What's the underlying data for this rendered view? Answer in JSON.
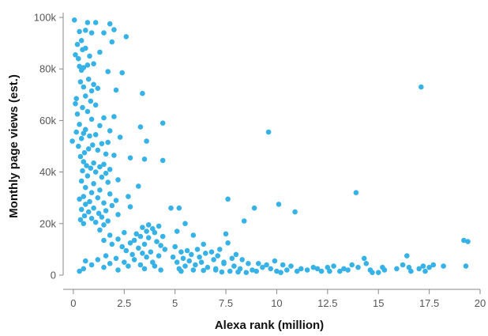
{
  "chart_data": {
    "type": "scatter",
    "title": "",
    "xlabel": "Alexa rank (million)",
    "ylabel": "Monthly page views (est.)",
    "xlim": [
      -0.5,
      20
    ],
    "ylim": [
      0,
      100000
    ],
    "x_ticks": [
      0,
      2.5,
      5,
      7.5,
      10,
      12.5,
      15,
      17.5,
      20
    ],
    "x_tick_labels": [
      "0",
      "2.5",
      "5",
      "7.5",
      "10",
      "12.5",
      "15",
      "17.5",
      "20"
    ],
    "y_ticks": [
      0,
      20000,
      40000,
      60000,
      80000,
      100000
    ],
    "y_tick_labels": [
      "0",
      "20k",
      "40k",
      "60k",
      "80k",
      "100k"
    ],
    "grid": false,
    "point_color": "#36b2e6",
    "points": [
      [
        0.05,
        99000
      ],
      [
        0.7,
        98000
      ],
      [
        1.1,
        98000
      ],
      [
        1.8,
        97500
      ],
      [
        0.6,
        95000
      ],
      [
        0.3,
        94500
      ],
      [
        2.0,
        95200
      ],
      [
        1.5,
        94000
      ],
      [
        0.9,
        94000
      ],
      [
        2.6,
        92500
      ],
      [
        0.4,
        91000
      ],
      [
        1.9,
        90500
      ],
      [
        0.2,
        89500
      ],
      [
        0.6,
        88000
      ],
      [
        0.45,
        87500
      ],
      [
        1.3,
        86500
      ],
      [
        0.1,
        85500
      ],
      [
        0.8,
        85000
      ],
      [
        0.25,
        84000
      ],
      [
        1.0,
        82000
      ],
      [
        0.7,
        81500
      ],
      [
        0.3,
        81000
      ],
      [
        0.5,
        80500
      ],
      [
        0.4,
        79500
      ],
      [
        1.7,
        79000
      ],
      [
        2.4,
        78500
      ],
      [
        0.75,
        76000
      ],
      [
        0.35,
        75000
      ],
      [
        1.0,
        74000
      ],
      [
        0.5,
        73000
      ],
      [
        1.2,
        72500
      ],
      [
        0.9,
        71500
      ],
      [
        2.1,
        71800
      ],
      [
        3.4,
        70500
      ],
      [
        0.6,
        69500
      ],
      [
        0.15,
        68500
      ],
      [
        0.85,
        67500
      ],
      [
        0.1,
        66500
      ],
      [
        1.1,
        66000
      ],
      [
        0.45,
        65000
      ],
      [
        0.7,
        63500
      ],
      [
        0.2,
        62500
      ],
      [
        2.0,
        61500
      ],
      [
        1.5,
        61000
      ],
      [
        0.9,
        60500
      ],
      [
        4.4,
        59000
      ],
      [
        0.3,
        58500
      ],
      [
        1.3,
        58000
      ],
      [
        3.3,
        57500
      ],
      [
        0.6,
        56500
      ],
      [
        1.8,
        56000
      ],
      [
        0.15,
        55500
      ],
      [
        0.5,
        55000
      ],
      [
        1.1,
        54500
      ],
      [
        0.8,
        54000
      ],
      [
        2.3,
        53500
      ],
      [
        0.4,
        53000
      ],
      [
        3.6,
        52000
      ],
      [
        1.7,
        51500
      ],
      [
        -0.05,
        52000
      ],
      [
        1.4,
        51000
      ],
      [
        0.95,
        50500
      ],
      [
        0.25,
        50000
      ],
      [
        0.75,
        49000
      ],
      [
        1.2,
        48500
      ],
      [
        0.55,
        47500
      ],
      [
        1.6,
        47000
      ],
      [
        2.0,
        46500
      ],
      [
        0.35,
        46000
      ],
      [
        2.8,
        45500
      ],
      [
        3.5,
        45000
      ],
      [
        4.4,
        44500
      ],
      [
        0.5,
        44000
      ],
      [
        1.0,
        43500
      ],
      [
        1.5,
        43000
      ],
      [
        0.65,
        42500
      ],
      [
        1.3,
        42000
      ],
      [
        0.85,
        41500
      ],
      [
        1.8,
        41000
      ],
      [
        0.45,
        40500
      ],
      [
        1.1,
        40000
      ],
      [
        1.6,
        39500
      ],
      [
        0.7,
        38500
      ],
      [
        1.4,
        38000
      ],
      [
        2.2,
        37000
      ],
      [
        0.4,
        36500
      ],
      [
        1.7,
        36000
      ],
      [
        1.0,
        35500
      ],
      [
        3.2,
        34500
      ],
      [
        0.6,
        34000
      ],
      [
        1.3,
        33000
      ],
      [
        0.9,
        32000
      ],
      [
        1.8,
        31500
      ],
      [
        2.7,
        30500
      ],
      [
        0.5,
        30500
      ],
      [
        1.2,
        30000
      ],
      [
        0.3,
        29500
      ],
      [
        2.1,
        29000
      ],
      [
        0.8,
        28500
      ],
      [
        1.5,
        28000
      ],
      [
        0.6,
        27500
      ],
      [
        1.9,
        27000
      ],
      [
        2.8,
        26500
      ],
      [
        1.0,
        26000
      ],
      [
        0.4,
        25500
      ],
      [
        1.6,
        25000
      ],
      [
        0.75,
        24500
      ],
      [
        1.25,
        24000
      ],
      [
        2.2,
        23500
      ],
      [
        0.55,
        23000
      ],
      [
        1.4,
        22500
      ],
      [
        0.9,
        22000
      ],
      [
        0.35,
        21500
      ],
      [
        1.7,
        21000
      ],
      [
        1.1,
        20500
      ],
      [
        0.5,
        20000
      ],
      [
        1.5,
        19500
      ],
      [
        3.7,
        19500
      ],
      [
        4.2,
        19000
      ],
      [
        3.4,
        18500
      ],
      [
        3.9,
        18000
      ],
      [
        1.3,
        17500
      ],
      [
        3.6,
        17000
      ],
      [
        4.0,
        16500
      ],
      [
        2.5,
        16500
      ],
      [
        3.1,
        16000
      ],
      [
        1.8,
        15500
      ],
      [
        3.3,
        15000
      ],
      [
        4.4,
        15000
      ],
      [
        3.7,
        14500
      ],
      [
        2.2,
        14000
      ],
      [
        3.0,
        13500
      ],
      [
        1.5,
        13500
      ],
      [
        4.1,
        13000
      ],
      [
        2.8,
        12500
      ],
      [
        3.5,
        12000
      ],
      [
        1.9,
        12000
      ],
      [
        4.3,
        11500
      ],
      [
        2.4,
        11000
      ],
      [
        3.2,
        10500
      ],
      [
        4.5,
        10000
      ],
      [
        2.6,
        9500
      ],
      [
        3.8,
        9000
      ],
      [
        3.4,
        8500
      ],
      [
        2.9,
        8000
      ],
      [
        4.2,
        7500
      ],
      [
        1.6,
        7500
      ],
      [
        3.6,
        7000
      ],
      [
        2.1,
        6500
      ],
      [
        3.0,
        6000
      ],
      [
        1.2,
        6000
      ],
      [
        0.6,
        5500
      ],
      [
        2.5,
        5000
      ],
      [
        3.9,
        5000
      ],
      [
        1.8,
        4500
      ],
      [
        3.3,
        4000
      ],
      [
        0.9,
        4000
      ],
      [
        2.7,
        3500
      ],
      [
        4.0,
        3500
      ],
      [
        1.5,
        3000
      ],
      [
        3.5,
        2500
      ],
      [
        0.5,
        2500
      ],
      [
        4.3,
        2000
      ],
      [
        2.2,
        2000
      ],
      [
        0.3,
        1500
      ],
      [
        4.8,
        26000
      ],
      [
        5.2,
        26000
      ],
      [
        5.5,
        20000
      ],
      [
        5.1,
        17000
      ],
      [
        5.9,
        15500
      ],
      [
        6.4,
        12000
      ],
      [
        5.0,
        11000
      ],
      [
        6.1,
        10000
      ],
      [
        5.6,
        9500
      ],
      [
        5.3,
        9000
      ],
      [
        6.8,
        9000
      ],
      [
        6.5,
        8500
      ],
      [
        5.8,
        8000
      ],
      [
        7.1,
        7500
      ],
      [
        4.9,
        7000
      ],
      [
        6.2,
        7000
      ],
      [
        5.4,
        6500
      ],
      [
        6.9,
        6000
      ],
      [
        5.7,
        5500
      ],
      [
        6.3,
        5000
      ],
      [
        5.1,
        5000
      ],
      [
        7.4,
        4500
      ],
      [
        6.0,
        4000
      ],
      [
        5.5,
        3500
      ],
      [
        6.6,
        3000
      ],
      [
        5.2,
        2500
      ],
      [
        7.0,
        2500
      ],
      [
        5.9,
        2000
      ],
      [
        6.4,
        1800
      ],
      [
        5.3,
        1500
      ],
      [
        7.3,
        1200
      ],
      [
        7.6,
        29500
      ],
      [
        7.5,
        16000
      ],
      [
        7.6,
        12500
      ],
      [
        7.2,
        10000
      ],
      [
        8.0,
        8000
      ],
      [
        7.8,
        6500
      ],
      [
        8.3,
        6000
      ],
      [
        7.4,
        5000
      ],
      [
        8.6,
        4500
      ],
      [
        7.9,
        3500
      ],
      [
        8.2,
        2500
      ],
      [
        7.0,
        2000
      ],
      [
        8.8,
        2000
      ],
      [
        7.7,
        1500
      ],
      [
        8.5,
        1000
      ],
      [
        8.9,
        26000
      ],
      [
        8.4,
        21000
      ],
      [
        9.6,
        55500
      ],
      [
        10.1,
        27500
      ],
      [
        10.9,
        24500
      ],
      [
        9.1,
        4500
      ],
      [
        9.5,
        4000
      ],
      [
        9.9,
        5500
      ],
      [
        10.3,
        4000
      ],
      [
        9.3,
        3000
      ],
      [
        10.7,
        3500
      ],
      [
        9.7,
        2500
      ],
      [
        10.5,
        2000
      ],
      [
        11.2,
        2500
      ],
      [
        9.0,
        1500
      ],
      [
        10.0,
        1500
      ],
      [
        11.0,
        1500
      ],
      [
        11.5,
        2000
      ],
      [
        12.0,
        2500
      ],
      [
        10.2,
        1000
      ],
      [
        12.5,
        3000
      ],
      [
        12.8,
        3500
      ],
      [
        13.3,
        2500
      ],
      [
        13.7,
        4000
      ],
      [
        13.9,
        32000
      ],
      [
        12.6,
        1500
      ],
      [
        13.1,
        1500
      ],
      [
        14.3,
        6500
      ],
      [
        14.4,
        4500
      ],
      [
        14.0,
        3000
      ],
      [
        13.5,
        2000
      ],
      [
        14.7,
        1000
      ],
      [
        15.2,
        3000
      ],
      [
        15.3,
        2000
      ],
      [
        15.0,
        1000
      ],
      [
        16.2,
        4000
      ],
      [
        16.4,
        7500
      ],
      [
        15.9,
        2500
      ],
      [
        16.6,
        1500
      ],
      [
        17.1,
        73000
      ],
      [
        17.2,
        3500
      ],
      [
        17.5,
        3000
      ],
      [
        17.0,
        2500
      ],
      [
        17.7,
        4000
      ],
      [
        17.3,
        1500
      ],
      [
        18.2,
        3500
      ],
      [
        19.2,
        13500
      ],
      [
        19.4,
        13000
      ],
      [
        19.3,
        3500
      ],
      [
        16.5,
        3000
      ],
      [
        14.6,
        2000
      ],
      [
        12.2,
        1500
      ],
      [
        11.8,
        3000
      ],
      [
        8.1,
        1200
      ]
    ]
  }
}
